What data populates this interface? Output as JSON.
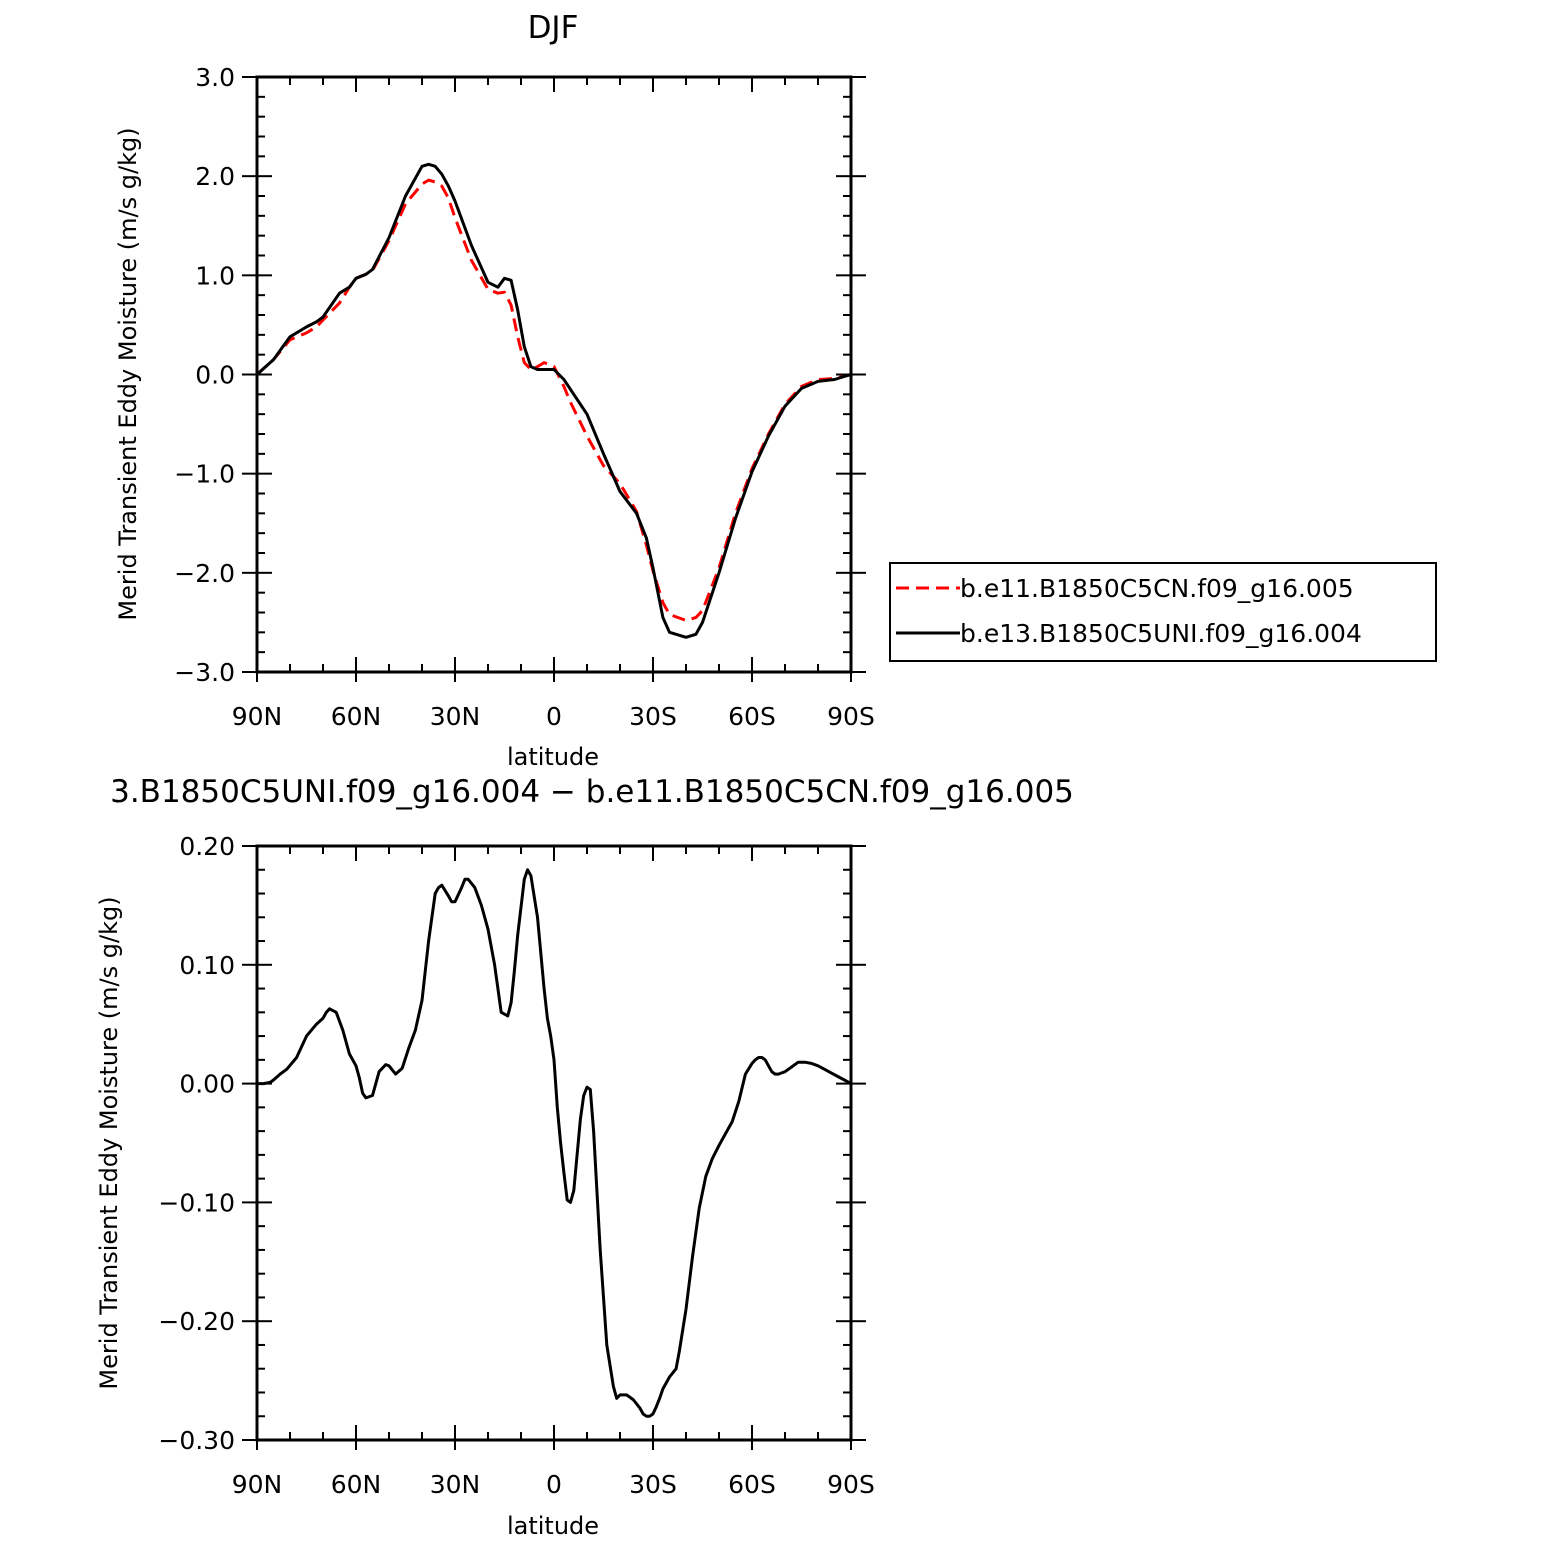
{
  "chart_data": [
    {
      "type": "line",
      "title": "DJF",
      "xlabel": "latitude",
      "ylabel": "Merid Transient Eddy Moisture (m/s g/kg)",
      "xlim": [
        90,
        -90
      ],
      "ylim": [
        -3.0,
        3.0
      ],
      "x_ticks": [
        90,
        60,
        30,
        0,
        -30,
        -60,
        -90
      ],
      "x_tick_labels": [
        "90N",
        "60N",
        "30N",
        "0",
        "30S",
        "60S",
        "90S"
      ],
      "y_ticks": [
        -3.0,
        -2.0,
        -1.0,
        0.0,
        1.0,
        2.0,
        3.0
      ],
      "y_tick_labels": [
        "−3.0",
        "−2.0",
        "−1.0",
        "0.0",
        "1.0",
        "2.0",
        "3.0"
      ],
      "grid": false,
      "legend_position": "right",
      "series": [
        {
          "name": "b.e11.B1850C5CN.f09_g16.005",
          "color": "#ff0000",
          "style": "dashed",
          "x": [
            90,
            85,
            80,
            75,
            72,
            70,
            65,
            62,
            60,
            57,
            55,
            50,
            45,
            40,
            38,
            36,
            34,
            32,
            30,
            25,
            20,
            17,
            15,
            13,
            11,
            9,
            7,
            5,
            3,
            0,
            -3,
            -5,
            -10,
            -15,
            -20,
            -25,
            -28,
            -30,
            -33,
            -35,
            -40,
            -43,
            -45,
            -50,
            -55,
            -60,
            -65,
            -70,
            -75,
            -80,
            -85,
            -90
          ],
          "y": [
            0.0,
            0.15,
            0.35,
            0.42,
            0.48,
            0.55,
            0.72,
            0.88,
            0.97,
            1.01,
            1.05,
            1.35,
            1.72,
            1.92,
            1.96,
            1.94,
            1.9,
            1.78,
            1.58,
            1.15,
            0.86,
            0.82,
            0.83,
            0.7,
            0.38,
            0.12,
            0.05,
            0.08,
            0.12,
            0.08,
            -0.12,
            -0.28,
            -0.62,
            -0.92,
            -1.1,
            -1.38,
            -1.72,
            -1.98,
            -2.3,
            -2.42,
            -2.48,
            -2.45,
            -2.38,
            -1.95,
            -1.4,
            -0.95,
            -0.6,
            -0.3,
            -0.12,
            -0.05,
            -0.04,
            0.0
          ]
        },
        {
          "name": "b.e13.B1850C5UNI.f09_g16.004",
          "color": "#000000",
          "style": "solid",
          "x": [
            90,
            85,
            80,
            75,
            72,
            70,
            65,
            62,
            60,
            57,
            55,
            50,
            45,
            40,
            38,
            36,
            34,
            32,
            30,
            25,
            20,
            17,
            15,
            13,
            11,
            9,
            7,
            5,
            3,
            0,
            -3,
            -5,
            -10,
            -15,
            -20,
            -25,
            -28,
            -30,
            -33,
            -35,
            -40,
            -43,
            -45,
            -50,
            -55,
            -60,
            -65,
            -70,
            -75,
            -80,
            -85,
            -90
          ],
          "y": [
            0.0,
            0.15,
            0.38,
            0.48,
            0.53,
            0.58,
            0.82,
            0.88,
            0.97,
            1.01,
            1.06,
            1.38,
            1.8,
            2.1,
            2.12,
            2.1,
            2.02,
            1.9,
            1.75,
            1.3,
            0.93,
            0.88,
            0.97,
            0.95,
            0.65,
            0.28,
            0.08,
            0.05,
            0.05,
            0.05,
            -0.05,
            -0.15,
            -0.4,
            -0.8,
            -1.18,
            -1.4,
            -1.65,
            -1.95,
            -2.45,
            -2.6,
            -2.65,
            -2.62,
            -2.5,
            -2.0,
            -1.45,
            -0.98,
            -0.62,
            -0.32,
            -0.14,
            -0.07,
            -0.05,
            0.0
          ]
        }
      ]
    },
    {
      "type": "line",
      "title": "3.B1850C5UNI.f09_g16.004 − b.e11.B1850C5CN.f09_g16.005",
      "xlabel": "latitude",
      "ylabel": "Merid Transient Eddy Moisture (m/s g/kg)",
      "xlim": [
        90,
        -90
      ],
      "ylim": [
        -0.3,
        0.2
      ],
      "x_ticks": [
        90,
        60,
        30,
        0,
        -30,
        -60,
        -90
      ],
      "x_tick_labels": [
        "90N",
        "60N",
        "30N",
        "0",
        "30S",
        "60S",
        "90S"
      ],
      "y_ticks": [
        -0.3,
        -0.2,
        -0.1,
        0.0,
        0.1,
        0.2
      ],
      "y_tick_labels": [
        "−0.30",
        "−0.20",
        "−0.10",
        "0.00",
        "0.10",
        "0.20"
      ],
      "grid": false,
      "series": [
        {
          "color": "#000000",
          "style": "solid",
          "x": [
            90,
            88,
            86,
            85,
            83,
            81,
            78,
            75,
            72,
            70,
            69,
            68,
            66,
            64,
            62,
            60,
            59,
            58,
            57,
            55,
            53,
            51,
            50,
            48,
            46,
            44,
            42,
            40,
            38,
            36,
            35,
            34,
            32,
            31,
            30,
            28,
            27,
            26,
            24,
            22,
            20,
            18,
            16,
            14,
            13,
            12,
            11,
            9,
            8,
            7,
            5,
            3,
            2,
            1,
            0,
            -1,
            -2,
            -3,
            -4,
            -5,
            -6,
            -7,
            -8,
            -9,
            -10,
            -11,
            -12,
            -13,
            -14,
            -16,
            -18,
            -19,
            -20,
            -22,
            -24,
            -26,
            -27,
            -28,
            -29,
            -30,
            -31,
            -32,
            -33,
            -35,
            -37,
            -38,
            -40,
            -42,
            -44,
            -46,
            -48,
            -50,
            -52,
            -54,
            -56,
            -58,
            -60,
            -61,
            -62,
            -63,
            -64,
            -65,
            -66,
            -67,
            -68,
            -69,
            -70,
            -72,
            -74,
            -76,
            -78,
            -80,
            -82,
            -84,
            -86,
            -88,
            -90
          ],
          "y": [
            0.0,
            0.0,
            0.001,
            0.003,
            0.008,
            0.012,
            0.022,
            0.04,
            0.05,
            0.055,
            0.06,
            0.063,
            0.06,
            0.045,
            0.025,
            0.015,
            0.005,
            -0.008,
            -0.012,
            -0.01,
            0.01,
            0.016,
            0.015,
            0.008,
            0.013,
            0.03,
            0.045,
            0.07,
            0.12,
            0.16,
            0.165,
            0.167,
            0.158,
            0.153,
            0.153,
            0.165,
            0.172,
            0.172,
            0.165,
            0.15,
            0.13,
            0.1,
            0.06,
            0.057,
            0.068,
            0.095,
            0.125,
            0.172,
            0.18,
            0.175,
            0.14,
            0.08,
            0.055,
            0.04,
            0.02,
            -0.02,
            -0.05,
            -0.075,
            -0.098,
            -0.1,
            -0.09,
            -0.06,
            -0.03,
            -0.01,
            -0.003,
            -0.005,
            -0.04,
            -0.09,
            -0.14,
            -0.22,
            -0.255,
            -0.265,
            -0.262,
            -0.262,
            -0.266,
            -0.273,
            -0.278,
            -0.28,
            -0.28,
            -0.278,
            -0.272,
            -0.265,
            -0.257,
            -0.247,
            -0.24,
            -0.225,
            -0.19,
            -0.145,
            -0.105,
            -0.078,
            -0.063,
            -0.052,
            -0.042,
            -0.032,
            -0.015,
            0.008,
            0.017,
            0.02,
            0.022,
            0.022,
            0.02,
            0.015,
            0.01,
            0.008,
            0.008,
            0.009,
            0.01,
            0.014,
            0.018,
            0.018,
            0.017,
            0.015,
            0.012,
            0.009,
            0.006,
            0.003,
            0.0
          ]
        }
      ]
    }
  ]
}
